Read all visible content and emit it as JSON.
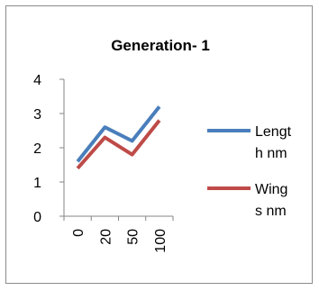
{
  "chart_data": {
    "type": "line",
    "title": "Generation- 1",
    "xlabel": "",
    "ylabel": "",
    "categories": [
      "0",
      "20",
      "50",
      "100"
    ],
    "ylim": [
      0,
      4
    ],
    "yticks": [
      "0",
      "1",
      "2",
      "3",
      "4"
    ],
    "grid": false,
    "legend_position": "right",
    "series": [
      {
        "name": "Length nm",
        "legend_lines": [
          "Lengt",
          "h nm"
        ],
        "color": "#4a7ebb",
        "values": [
          1.6,
          2.6,
          2.2,
          3.2
        ]
      },
      {
        "name": "Wings nm",
        "legend_lines": [
          "Wing",
          "s nm"
        ],
        "color": "#be4b48",
        "values": [
          1.4,
          2.3,
          1.8,
          2.8
        ]
      }
    ]
  }
}
